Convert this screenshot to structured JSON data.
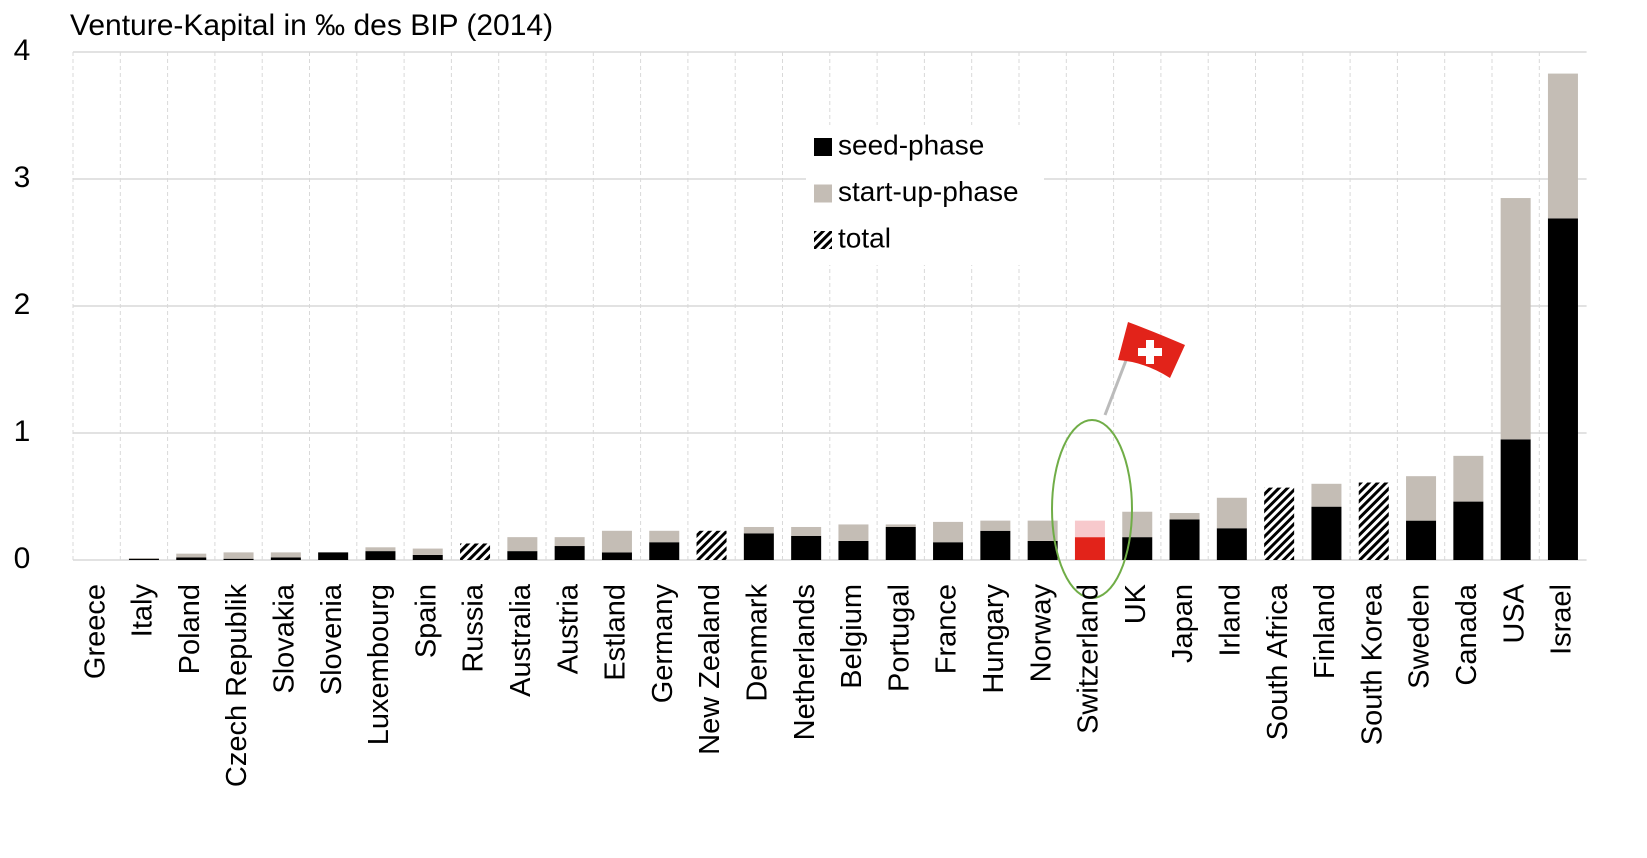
{
  "chart_data": {
    "type": "bar",
    "stacked": true,
    "title": "Venture-Kapital in ‰ des BIP (2014)",
    "categories": [
      "Greece",
      "Italy",
      "Poland",
      "Czech Republik",
      "Slovakia",
      "Slovenia",
      "Luxembourg",
      "Spain",
      "Russia",
      "Australia",
      "Austria",
      "Estland",
      "Germany",
      "New Zealand",
      "Denmark",
      "Netherlands",
      "Belgium",
      "Portugal",
      "France",
      "Hungary",
      "Norway",
      "Switzerland",
      "UK",
      "Japan",
      "Irland",
      "South Africa",
      "Finland",
      "South Korea",
      "Sweden",
      "Canada",
      "USA",
      "Israel"
    ],
    "series": [
      {
        "name": "seed-phase",
        "color": "#000000",
        "point_colors": {
          "21": "#e2231a"
        },
        "values": [
          0,
          0.01,
          0.02,
          0.01,
          0.02,
          0.06,
          0.07,
          0.04,
          null,
          0.07,
          0.11,
          0.06,
          0.14,
          null,
          0.21,
          0.19,
          0.15,
          0.26,
          0.14,
          0.23,
          0.15,
          0.18,
          0.18,
          0.32,
          0.25,
          null,
          0.42,
          null,
          0.31,
          0.46,
          0.95,
          2.69
        ]
      },
      {
        "name": "start-up-phase",
        "color": "#c4bdb5",
        "point_colors": {
          "21": "#f7c9cc"
        },
        "values": [
          0,
          0.005,
          0.03,
          0.05,
          0.04,
          0,
          0.03,
          0.05,
          null,
          0.11,
          0.07,
          0.17,
          0.09,
          null,
          0.05,
          0.07,
          0.13,
          0.02,
          0.16,
          0.08,
          0.16,
          0.13,
          0.2,
          0.05,
          0.24,
          null,
          0.18,
          null,
          0.35,
          0.36,
          1.9,
          1.14
        ]
      },
      {
        "name": "total",
        "color": "#000000",
        "pattern": "hatch",
        "values": [
          null,
          null,
          null,
          null,
          null,
          null,
          null,
          null,
          0.13,
          null,
          null,
          null,
          null,
          0.23,
          null,
          null,
          null,
          null,
          null,
          null,
          null,
          null,
          null,
          null,
          null,
          0.57,
          null,
          0.61,
          null,
          null,
          null,
          null
        ]
      }
    ],
    "ylim": [
      0,
      4
    ],
    "yticks": [
      0,
      1,
      2,
      3,
      4
    ],
    "grid": true,
    "xgrid": true
  }
}
